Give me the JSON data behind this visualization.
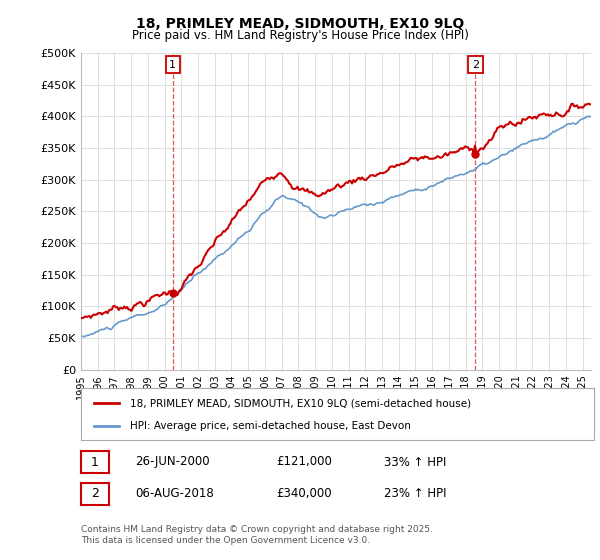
{
  "title1": "18, PRIMLEY MEAD, SIDMOUTH, EX10 9LQ",
  "title2": "Price paid vs. HM Land Registry's House Price Index (HPI)",
  "yticks": [
    0,
    50000,
    100000,
    150000,
    200000,
    250000,
    300000,
    350000,
    400000,
    450000,
    500000
  ],
  "ytick_labels": [
    "£0",
    "£50K",
    "£100K",
    "£150K",
    "£200K",
    "£250K",
    "£300K",
    "£350K",
    "£400K",
    "£450K",
    "£500K"
  ],
  "ylim": [
    0,
    500000
  ],
  "xlim_start": 1995.0,
  "xlim_end": 2025.5,
  "xticks": [
    1995,
    1996,
    1997,
    1998,
    1999,
    2000,
    2001,
    2002,
    2003,
    2004,
    2005,
    2006,
    2007,
    2008,
    2009,
    2010,
    2011,
    2012,
    2013,
    2014,
    2015,
    2016,
    2017,
    2018,
    2019,
    2020,
    2021,
    2022,
    2023,
    2024,
    2025
  ],
  "n_points": 366,
  "sale1_x": 2000.487,
  "sale1_y": 121000,
  "sale1_label": "1",
  "sale2_x": 2018.587,
  "sale2_y": 340000,
  "sale2_label": "2",
  "legend_label_red": "18, PRIMLEY MEAD, SIDMOUTH, EX10 9LQ (semi-detached house)",
  "legend_label_blue": "HPI: Average price, semi-detached house, East Devon",
  "row1_num": "1",
  "row1_date": "26-JUN-2000",
  "row1_price": "£121,000",
  "row1_pct": "33% ↑ HPI",
  "row2_num": "2",
  "row2_date": "06-AUG-2018",
  "row2_price": "£340,000",
  "row2_pct": "23% ↑ HPI",
  "footer": "Contains HM Land Registry data © Crown copyright and database right 2025.\nThis data is licensed under the Open Government Licence v3.0.",
  "red_color": "#cc0000",
  "blue_color": "#6699cc",
  "background_color": "#ffffff",
  "grid_color": "#dddddd"
}
